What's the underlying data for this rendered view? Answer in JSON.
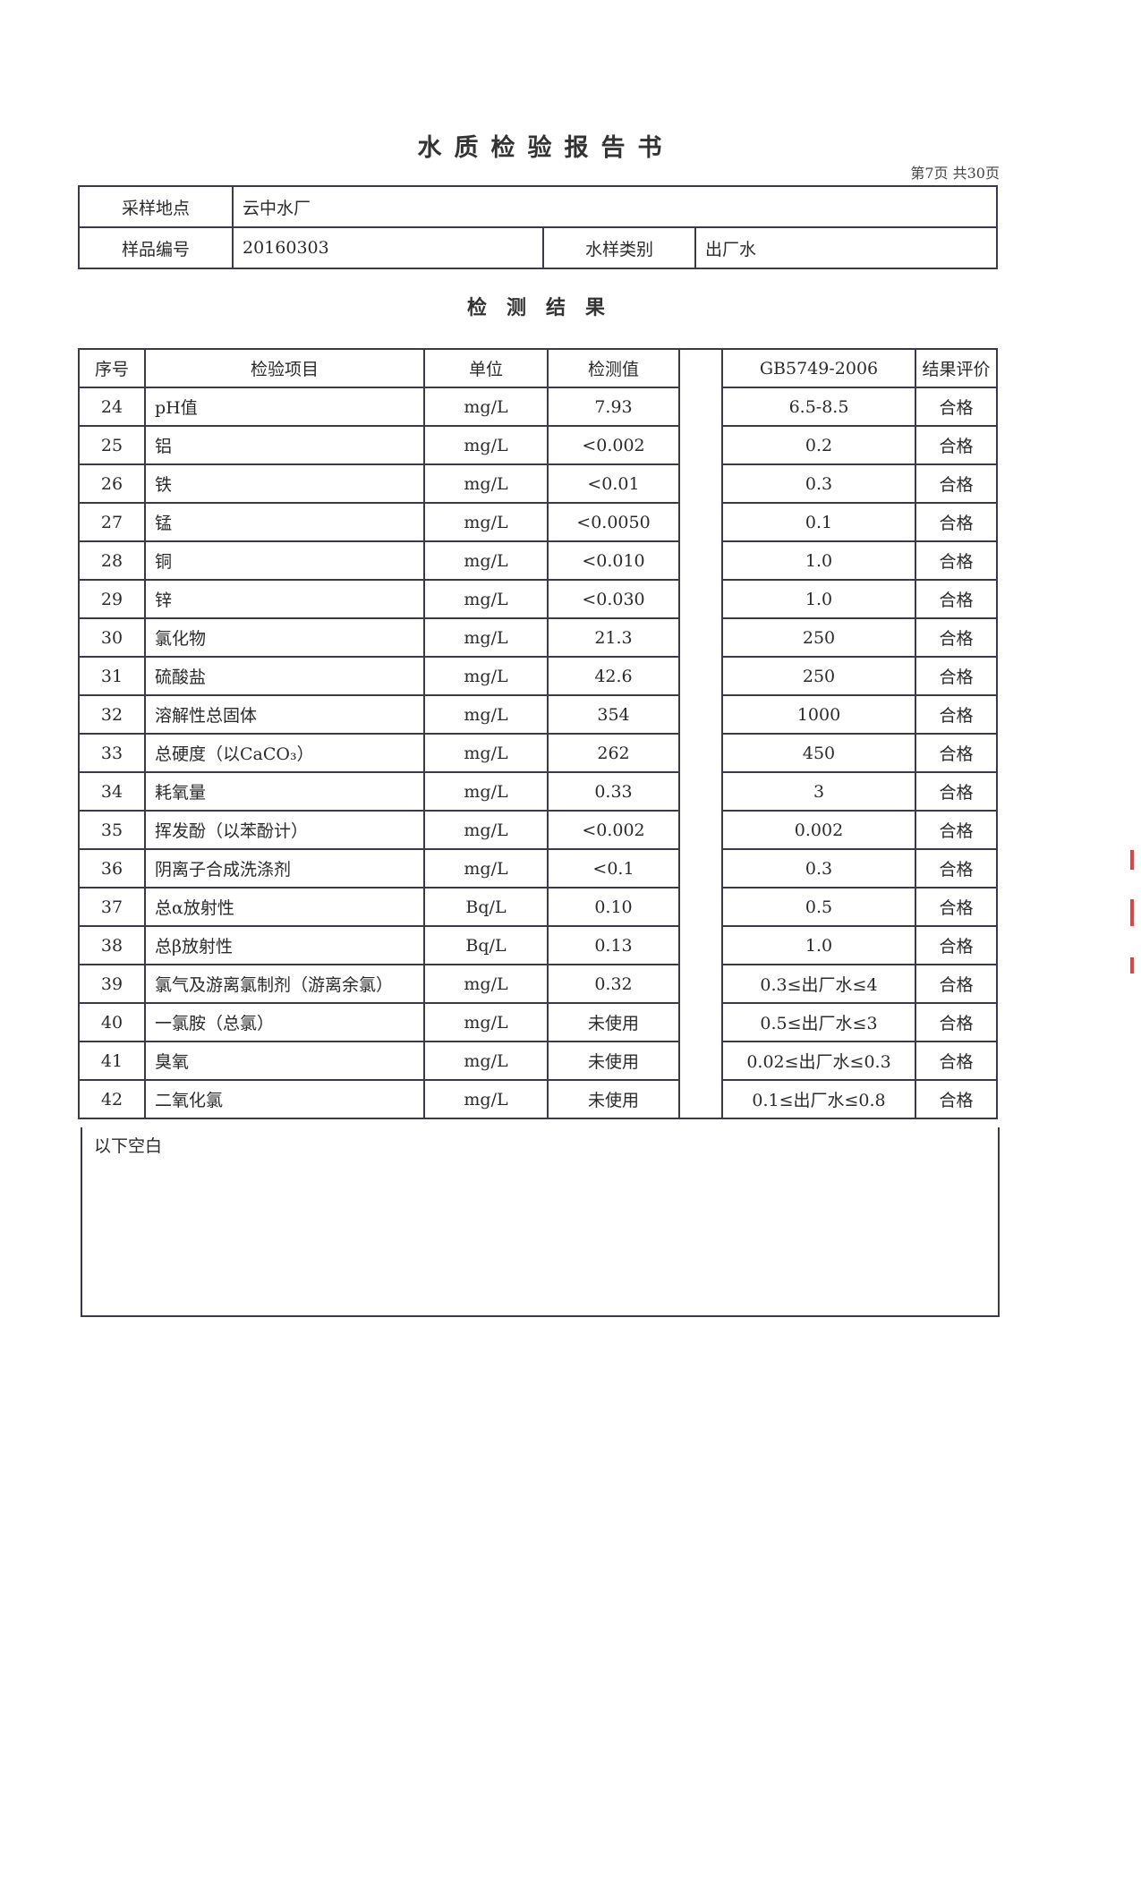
{
  "title": "水质检验报告书",
  "page_info": "第7页  共30页",
  "info": {
    "location_label": "采样地点",
    "location": "云中水厂",
    "sample_no_label": "样品编号",
    "sample_no": "20160303",
    "type_label": "水样类别",
    "type": "出厂水"
  },
  "section_title": "检测结果",
  "table": {
    "headers": [
      "序号",
      "检验项目",
      "单位",
      "检测值",
      "GB5749-2006",
      "结果评价"
    ],
    "rows": [
      [
        "24",
        "pH值",
        "mg/L",
        "7.93",
        "6.5-8.5",
        "合格"
      ],
      [
        "25",
        "铝",
        "mg/L",
        "<0.002",
        "0.2",
        "合格"
      ],
      [
        "26",
        "铁",
        "mg/L",
        "<0.01",
        "0.3",
        "合格"
      ],
      [
        "27",
        "锰",
        "mg/L",
        "<0.0050",
        "0.1",
        "合格"
      ],
      [
        "28",
        "铜",
        "mg/L",
        "<0.010",
        "1.0",
        "合格"
      ],
      [
        "29",
        "锌",
        "mg/L",
        "<0.030",
        "1.0",
        "合格"
      ],
      [
        "30",
        "氯化物",
        "mg/L",
        "21.3",
        "250",
        "合格"
      ],
      [
        "31",
        "硫酸盐",
        "mg/L",
        "42.6",
        "250",
        "合格"
      ],
      [
        "32",
        "溶解性总固体",
        "mg/L",
        "354",
        "1000",
        "合格"
      ],
      [
        "33",
        "总硬度（以CaCO₃）",
        "mg/L",
        "262",
        "450",
        "合格"
      ],
      [
        "34",
        "耗氧量",
        "mg/L",
        "0.33",
        "3",
        "合格"
      ],
      [
        "35",
        "挥发酚（以苯酚计）",
        "mg/L",
        "<0.002",
        "0.002",
        "合格"
      ],
      [
        "36",
        "阴离子合成洗涤剂",
        "mg/L",
        "<0.1",
        "0.3",
        "合格"
      ],
      [
        "37",
        "总α放射性",
        "Bq/L",
        "0.10",
        "0.5",
        "合格"
      ],
      [
        "38",
        "总β放射性",
        "Bq/L",
        "0.13",
        "1.0",
        "合格"
      ],
      [
        "39",
        "氯气及游离氯制剂（游离余氯）",
        "mg/L",
        "0.32",
        "0.3≤出厂水≤4",
        "合格"
      ],
      [
        "40",
        "一氯胺（总氯）",
        "mg/L",
        "未使用",
        "0.5≤出厂水≤3",
        "合格"
      ],
      [
        "41",
        "臭氧",
        "mg/L",
        "未使用",
        "0.02≤出厂水≤0.3",
        "合格"
      ],
      [
        "42",
        "二氧化氯",
        "mg/L",
        "未使用",
        "0.1≤出厂水≤0.8",
        "合格"
      ]
    ]
  },
  "remark": "以下空白"
}
